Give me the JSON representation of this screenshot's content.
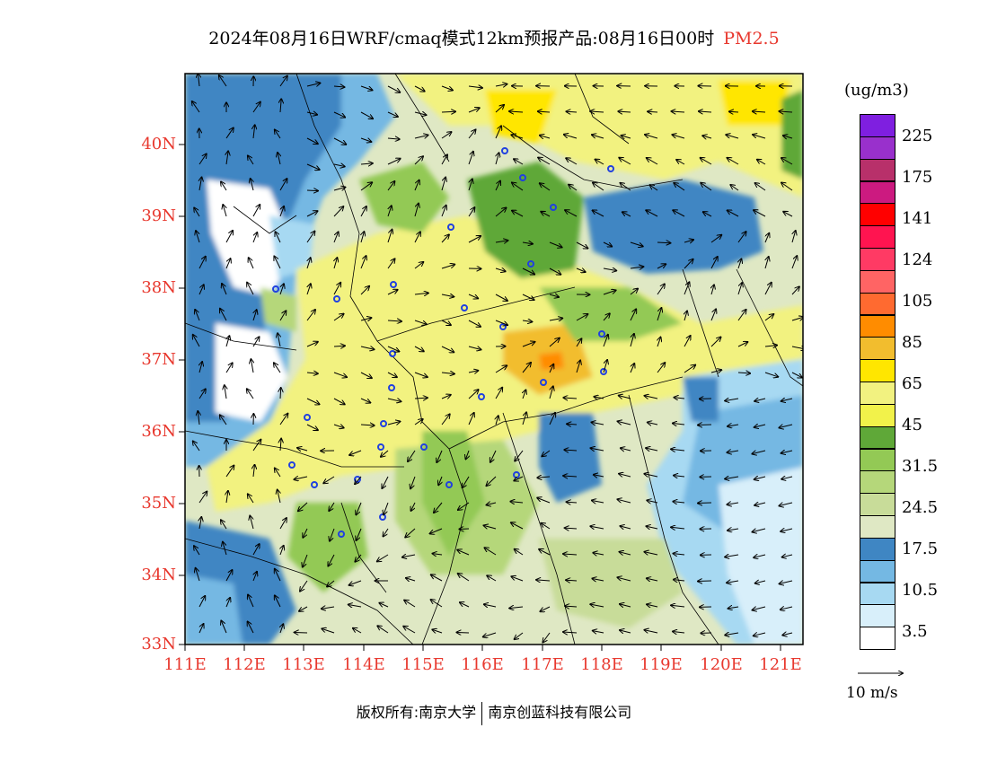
{
  "title": {
    "main": "2024年08月16日WRF/cmaq模式12km预报产品:08月16日00时",
    "species": "PM2.5"
  },
  "axes": {
    "y_ticks": [
      "40N",
      "39N",
      "38N",
      "37N",
      "36N",
      "35N",
      "34N",
      "33N"
    ],
    "x_ticks": [
      "111E",
      "112E",
      "113E",
      "114E",
      "115E",
      "116E",
      "117E",
      "118E",
      "119E",
      "120E",
      "121E"
    ],
    "lon_range": [
      111,
      121.4
    ],
    "lat_range": [
      33,
      40.8
    ]
  },
  "colorbar": {
    "unit": "(ug/m3)",
    "colors": [
      "#ffffff",
      "#d8effa",
      "#a7d9f2",
      "#74b8e3",
      "#3f86c3",
      "#dfe8c4",
      "#c8dc99",
      "#b5d77a",
      "#93c955",
      "#5fa838",
      "#f2f24a",
      "#f2f280",
      "#ffe600",
      "#f2bd2e",
      "#ff8c00",
      "#ff6a30",
      "#ff6464",
      "#ff3a64",
      "#ff1450",
      "#ff0000",
      "#cc1a80",
      "#b8306a",
      "#9930cc",
      "#7f1fe0"
    ],
    "labels": [
      "225",
      "175",
      "141",
      "124",
      "105",
      "85",
      "65",
      "45",
      "31.5",
      "24.5",
      "17.5",
      "10.5",
      "3.5"
    ]
  },
  "wind_vector_label": "10  m/s",
  "copyright": {
    "left": "版权所有:南京大学",
    "right": "南京创蓝科技有限公司"
  }
}
